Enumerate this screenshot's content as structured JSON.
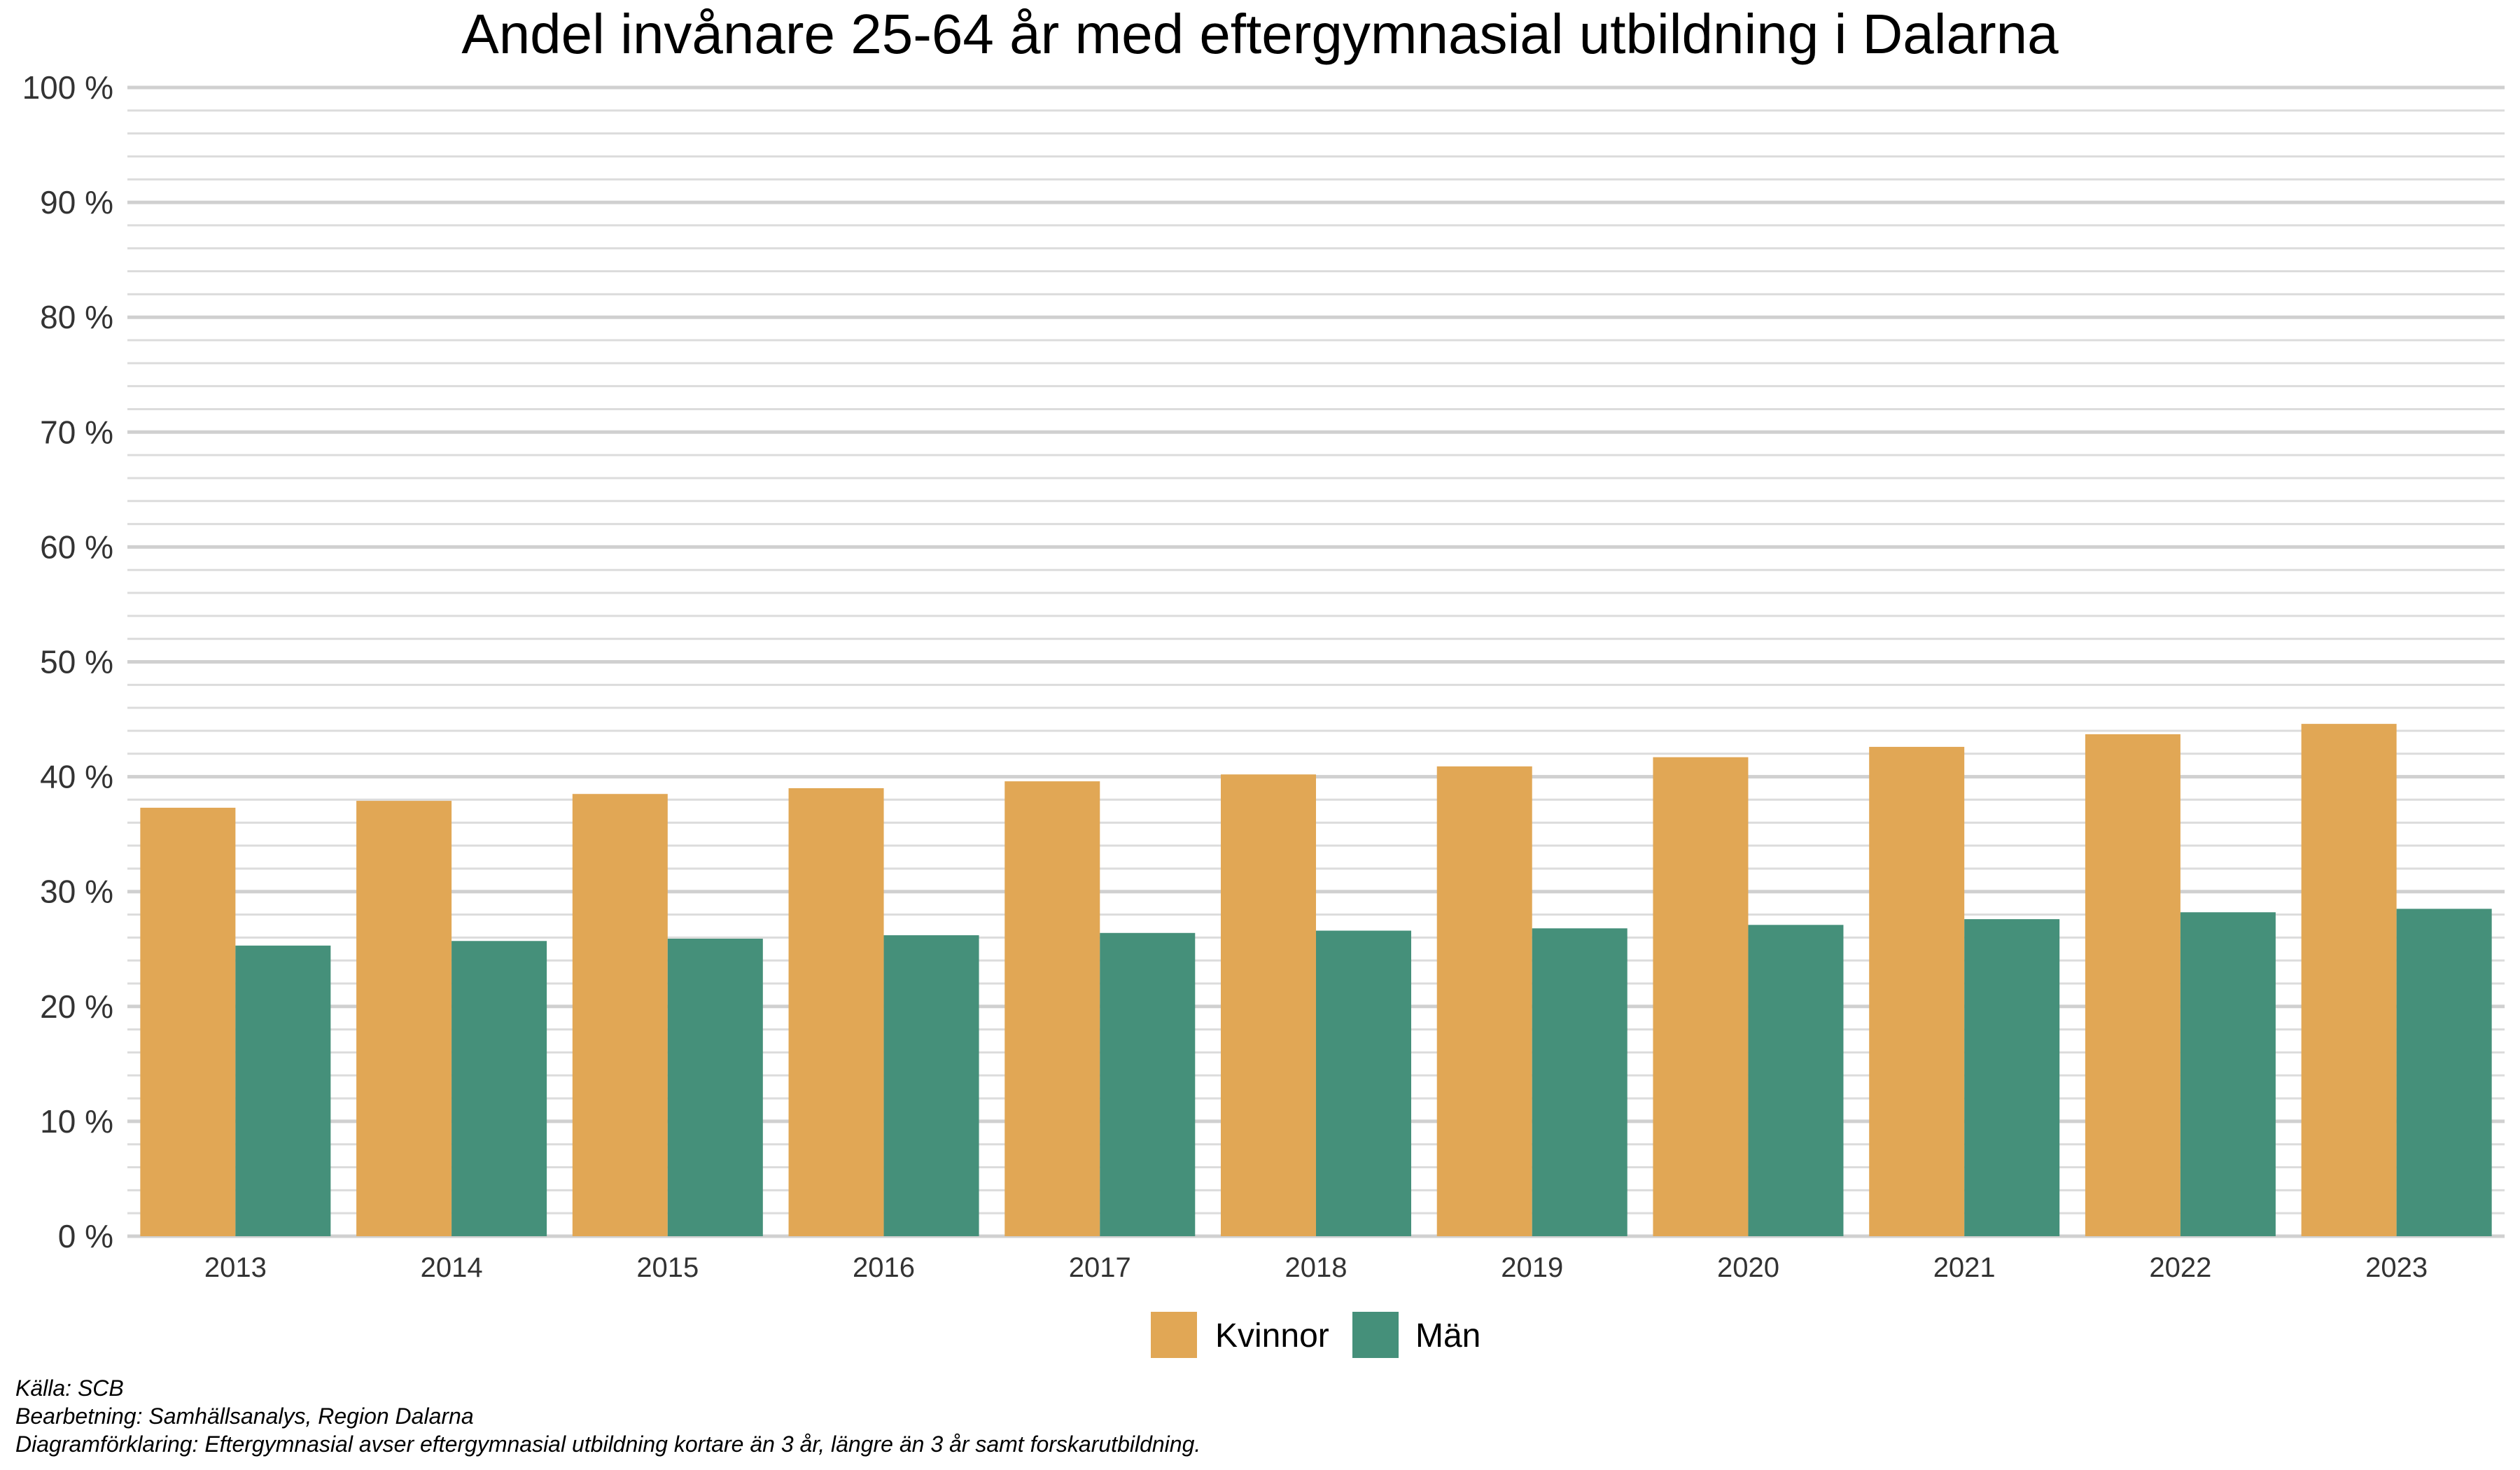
{
  "chart_data": {
    "type": "bar",
    "title": "Andel invånare 25-64 år med eftergymnasial utbildning i Dalarna",
    "xlabel": "",
    "ylabel": "",
    "categories": [
      "2013",
      "2014",
      "2015",
      "2016",
      "2017",
      "2018",
      "2019",
      "2020",
      "2021",
      "2022",
      "2023"
    ],
    "series": [
      {
        "name": "Kvinnor",
        "color": "#E1A755",
        "values": [
          37.3,
          37.9,
          38.5,
          39.0,
          39.6,
          40.2,
          40.9,
          41.7,
          42.6,
          43.7,
          44.6
        ]
      },
      {
        "name": "Män",
        "color": "#45907A",
        "values": [
          25.3,
          25.7,
          25.9,
          26.2,
          26.4,
          26.6,
          26.8,
          27.1,
          27.6,
          28.2,
          28.5
        ]
      }
    ],
    "ylim": [
      0,
      100
    ],
    "yticks": [
      0,
      10,
      20,
      30,
      40,
      50,
      60,
      70,
      80,
      90,
      100
    ],
    "ytick_labels": [
      "0 %",
      "10 %",
      "20 %",
      "30 %",
      "40 %",
      "50 %",
      "60 %",
      "70 %",
      "80 %",
      "90 %",
      "100 %"
    ],
    "grid": true,
    "legend_position": "bottom"
  },
  "captions": {
    "source": "Källa: SCB",
    "processing": "Bearbetning: Samhällsanalys, Region Dalarna",
    "explanation": "Diagramförklaring: Eftergymnasial avser eftergymnasial utbildning kortare än 3 år, längre än 3 år samt forskarutbildning."
  }
}
